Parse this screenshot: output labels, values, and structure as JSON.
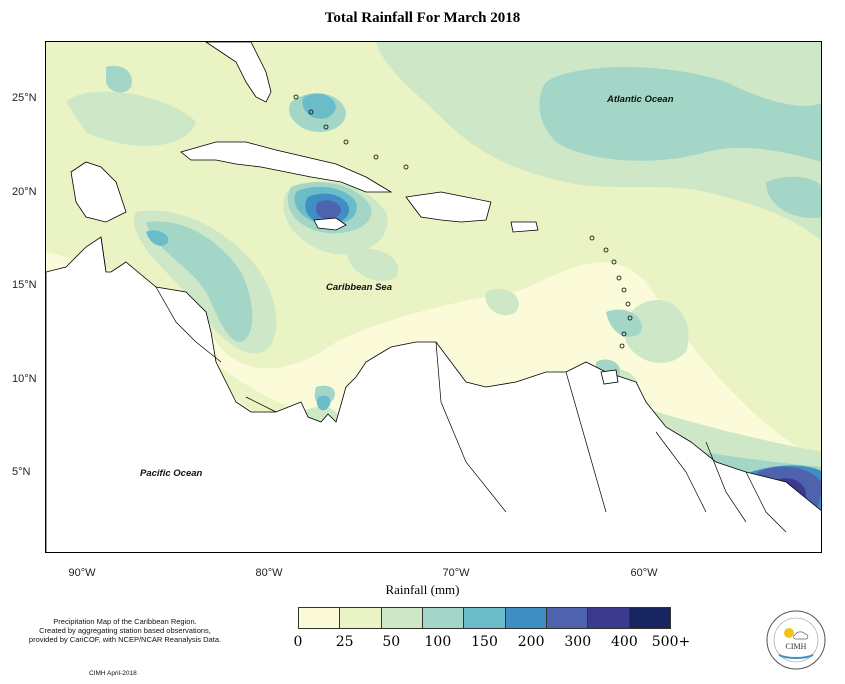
{
  "title": "Total Rainfall For March 2018",
  "map": {
    "latitude_labels": [
      "25°N",
      "20°N",
      "15°N",
      "10°N",
      "5°N"
    ],
    "longitude_labels": [
      "90°W",
      "80°W",
      "70°W",
      "60°W"
    ],
    "ocean_labels": {
      "atlantic": "Atlantic Ocean",
      "caribbean": "Caribbean Sea",
      "pacific": "Pacific Ocean"
    }
  },
  "legend": {
    "title": "Rainfall (mm)",
    "ticks": [
      "0",
      "25",
      "50",
      "100",
      "150",
      "200",
      "300",
      "400",
      "500+"
    ],
    "colors": [
      "#fbfbd9",
      "#eaf3c3",
      "#cde7c7",
      "#a3d6c7",
      "#6bbcc9",
      "#3f8fc4",
      "#4f62ad",
      "#3b3a8e",
      "#17245e"
    ]
  },
  "footnote": {
    "line1": "Precipitation Map of the Caribbean Region.",
    "line2": "Created by aggregating station based observations,",
    "line3": "provided by CariCOF, with NCEP/NCAR Reanalysis Data."
  },
  "credit": "CIMH April-2018",
  "logo": {
    "text": "CIMH"
  }
}
